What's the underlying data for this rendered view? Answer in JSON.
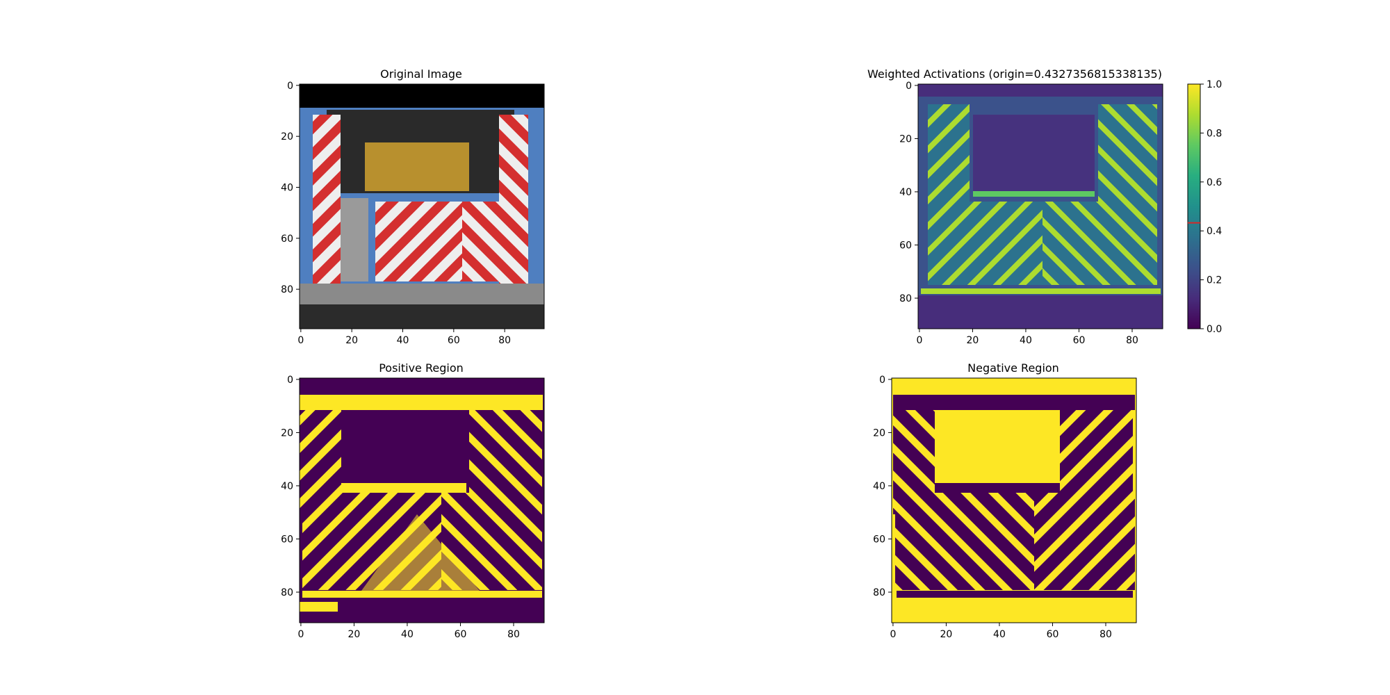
{
  "colors": {
    "viridis_low": "#440154",
    "viridis_mid": "#21918c",
    "viridis_high": "#fde725",
    "origin_marker": "#d62728",
    "sky": "#4f7fc0",
    "stripe_red": "#d42f2f",
    "stripe_white": "#eeeeee",
    "cargo": "#b8902e"
  },
  "chart_data": [
    {
      "type": "heatmap",
      "title": "Original Image",
      "content": "RGB photo of the rear of a fire truck with red and white chevron stripes",
      "xlim": [
        0,
        96
      ],
      "ylim": [
        96,
        0
      ],
      "xticks": [
        "0",
        "20",
        "40",
        "60",
        "80"
      ],
      "yticks": [
        "0",
        "20",
        "40",
        "60",
        "80"
      ]
    },
    {
      "type": "heatmap",
      "title": "Weighted Activations (origin=0.4327356815338135)",
      "colormap": "viridis",
      "xlim": [
        0,
        92
      ],
      "ylim": [
        92,
        0
      ],
      "xticks": [
        "0",
        "20",
        "40",
        "60",
        "80"
      ],
      "yticks": [
        "0",
        "20",
        "40",
        "60",
        "80"
      ],
      "origin": 0.4327356815338135,
      "colorbar": {
        "min": 0.0,
        "max": 1.0,
        "ticks": [
          "0.0",
          "0.2",
          "0.4",
          "0.6",
          "0.8",
          "1.0"
        ]
      }
    },
    {
      "type": "heatmap",
      "title": "Positive Region",
      "colormap": "viridis (binary)",
      "xlim": [
        0,
        92
      ],
      "ylim": [
        92,
        0
      ],
      "xticks": [
        "0",
        "20",
        "40",
        "60",
        "80"
      ],
      "yticks": [
        "0",
        "20",
        "40",
        "60",
        "80"
      ]
    },
    {
      "type": "heatmap",
      "title": "Negative Region",
      "colormap": "viridis (binary)",
      "xlim": [
        0,
        92
      ],
      "ylim": [
        92,
        0
      ],
      "xticks": [
        "0",
        "20",
        "40",
        "60",
        "80"
      ],
      "yticks": [
        "0",
        "20",
        "40",
        "60",
        "80"
      ]
    }
  ]
}
